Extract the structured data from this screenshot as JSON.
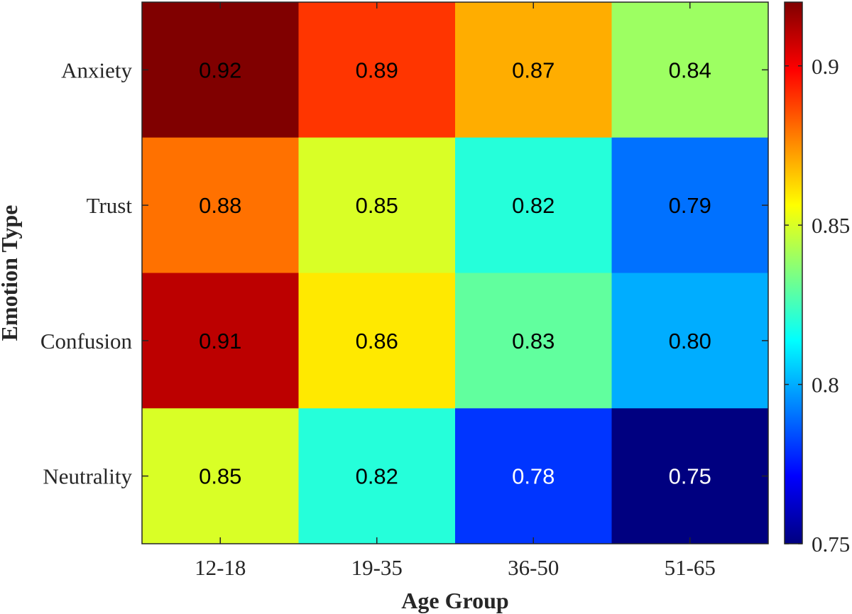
{
  "chart_data": {
    "type": "heatmap",
    "title": "",
    "xlabel": "Age Group",
    "ylabel": "Emotion Type",
    "x_categories": [
      "12-18",
      "19-35",
      "36-50",
      "51-65"
    ],
    "y_categories": [
      "Anxiety",
      "Trust",
      "Confusion",
      "Neutrality"
    ],
    "values": [
      [
        0.92,
        0.89,
        0.87,
        0.84
      ],
      [
        0.88,
        0.85,
        0.82,
        0.79
      ],
      [
        0.91,
        0.86,
        0.83,
        0.8
      ],
      [
        0.85,
        0.82,
        0.78,
        0.75
      ]
    ],
    "value_labels": [
      [
        "0.92",
        "0.89",
        "0.87",
        "0.84"
      ],
      [
        "0.88",
        "0.85",
        "0.82",
        "0.79"
      ],
      [
        "0.91",
        "0.86",
        "0.83",
        "0.80"
      ],
      [
        "0.85",
        "0.82",
        "0.78",
        "0.75"
      ]
    ],
    "colormap": "jet",
    "clim": [
      0.75,
      0.92
    ],
    "colorbar": {
      "ticks": [
        0.75,
        0.8,
        0.85,
        0.9
      ],
      "tick_labels": [
        "0.75",
        "0.8",
        "0.85",
        "0.9"
      ],
      "placement": "right"
    },
    "grid": false
  }
}
